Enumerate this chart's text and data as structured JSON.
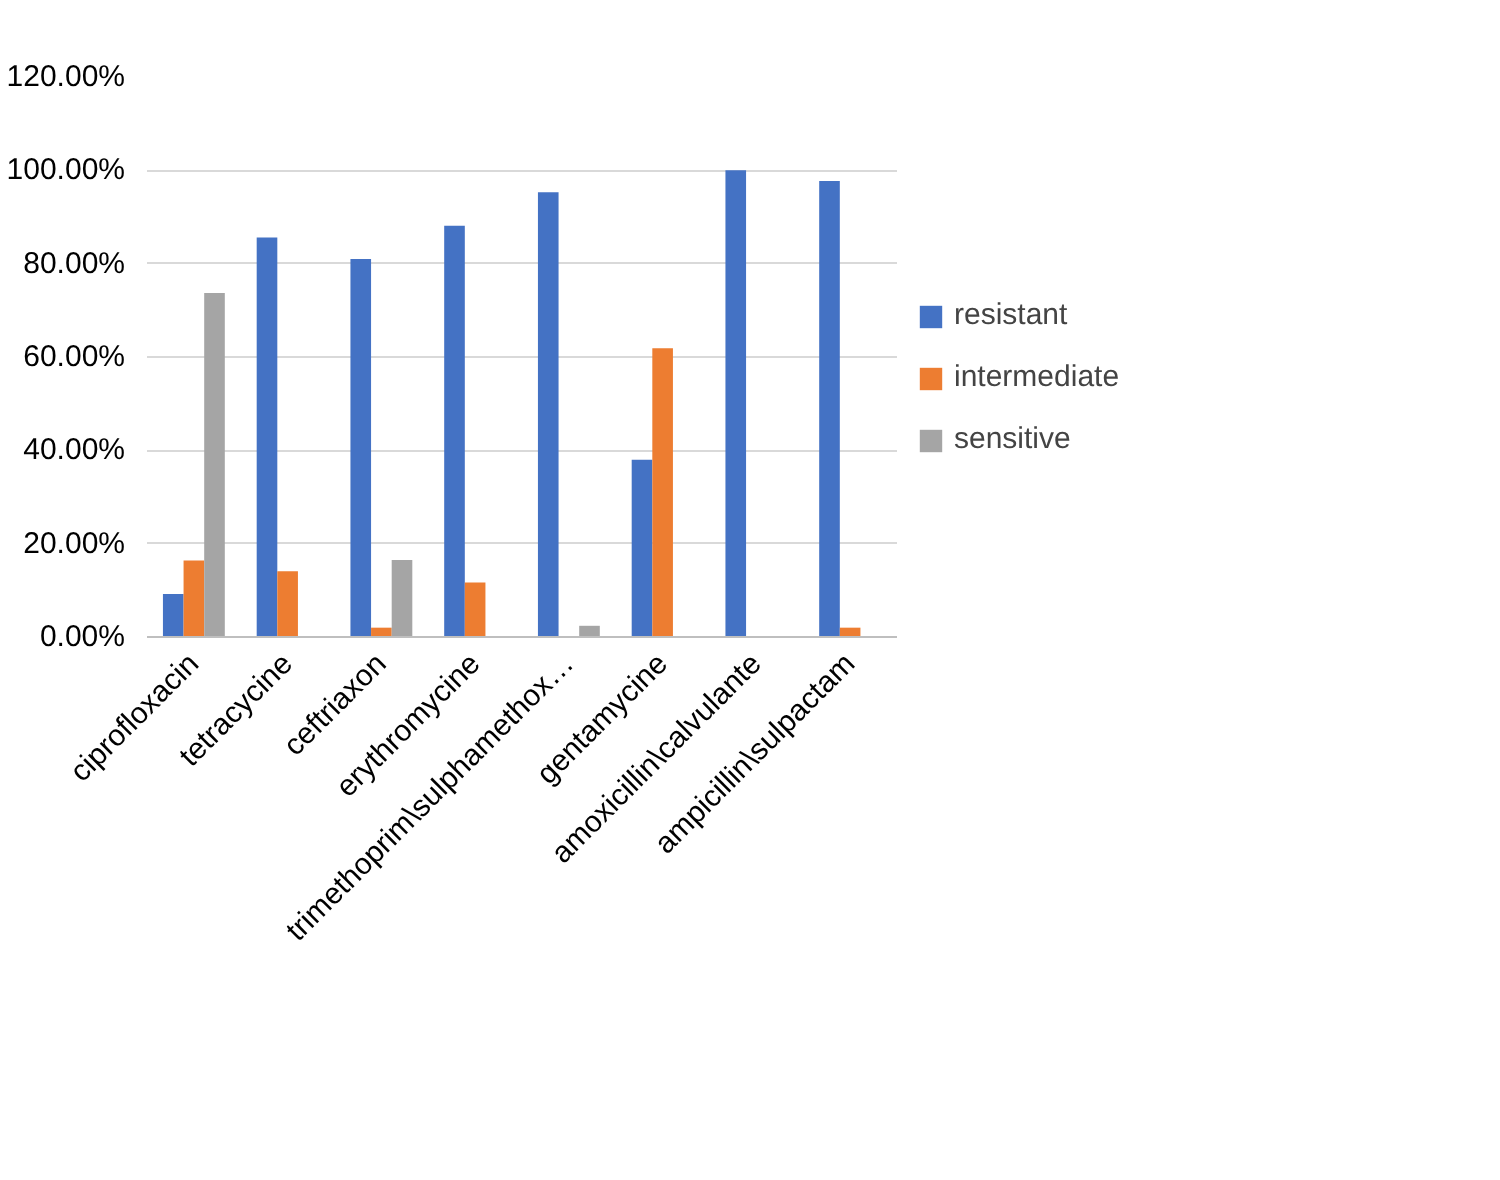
{
  "chart_data": {
    "type": "bar",
    "categories": [
      "ciprofloxacin",
      "tetracycine",
      "ceftriaxon",
      "erythromycine",
      "trimethoprim\\sulphamethox…",
      "gentamycine",
      "amoxicillin\\calvulante",
      "ampicillin\\sulpactam"
    ],
    "series": [
      {
        "name": "resistant",
        "color": "#4472c4",
        "values": [
          9.2,
          85.6,
          81.0,
          88.1,
          95.3,
          38.0,
          100.0,
          97.7
        ]
      },
      {
        "name": "intermediate",
        "color": "#ed7d31",
        "values": [
          16.4,
          14.1,
          2.0,
          11.7,
          0,
          61.9,
          0,
          2.0
        ]
      },
      {
        "name": "sensitive",
        "color": "#a5a5a5",
        "values": [
          73.7,
          0,
          16.5,
          0,
          2.4,
          0,
          0,
          0
        ]
      }
    ],
    "ylim": [
      0,
      120
    ],
    "yticks": [
      {
        "value": 0,
        "label": "0.00%"
      },
      {
        "value": 20,
        "label": "20.00%"
      },
      {
        "value": 40,
        "label": "40.00%"
      },
      {
        "value": 60,
        "label": "60.00%"
      },
      {
        "value": 80,
        "label": "80.00%"
      },
      {
        "value": 100,
        "label": "100.00%"
      },
      {
        "value": 120,
        "label": "120.00%"
      }
    ],
    "grid": "y",
    "legend": "right"
  }
}
